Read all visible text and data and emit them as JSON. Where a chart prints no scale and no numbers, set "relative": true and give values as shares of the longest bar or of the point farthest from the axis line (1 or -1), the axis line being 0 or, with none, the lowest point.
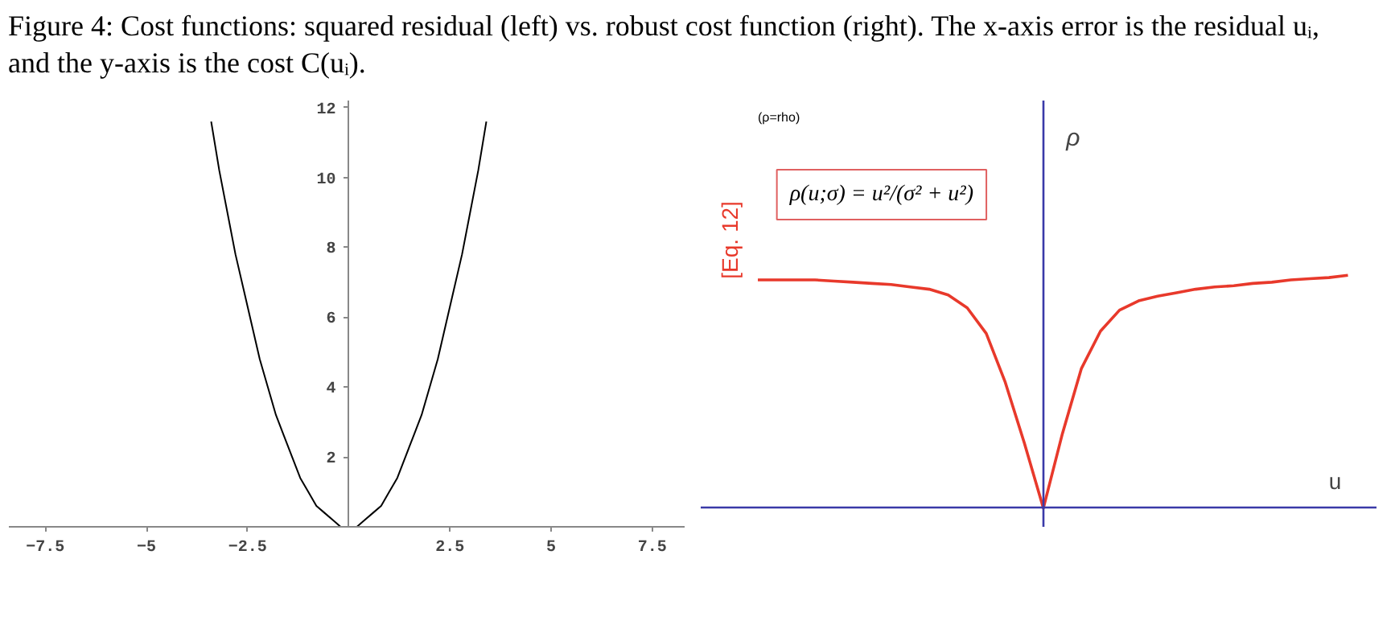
{
  "chart_data": [
    {
      "type": "line",
      "title": "Figure 4: Cost functions: squared residual (left) vs. robust cost function (right). The x-axis error is the residual uᵢ, and the y-axis is the cost C(uᵢ).",
      "x": [
        -3.4,
        -3.2,
        -3.0,
        -2.8,
        -2.6,
        -2.4,
        -2.2,
        -2.0,
        -1.8,
        -1.6,
        -1.4,
        -1.2,
        -1.0,
        -0.8,
        -0.6,
        -0.4,
        -0.2,
        0,
        0.2,
        0.4,
        0.6,
        0.8,
        1.0,
        1.2,
        1.4,
        1.6,
        1.8,
        2.0,
        2.2,
        2.4,
        2.6,
        2.8,
        3.0,
        3.2,
        3.4
      ],
      "series": [
        {
          "color": "#000000",
          "values": [
            11.6,
            10.2,
            9.0,
            7.8,
            6.8,
            5.8,
            4.8,
            4.0,
            3.2,
            2.6,
            2.0,
            1.4,
            1.0,
            0.6,
            0.4,
            0.2,
            0.0,
            0,
            0.0,
            0.2,
            0.4,
            0.6,
            1.0,
            1.4,
            2.0,
            2.6,
            3.2,
            4.0,
            4.8,
            5.8,
            6.8,
            7.8,
            9.0,
            10.2,
            11.6
          ]
        }
      ],
      "xlim": [
        -8.4,
        8.3
      ],
      "ylim": [
        0,
        12.2
      ],
      "xticks": [
        -7.5,
        -5,
        -2.5,
        2.5,
        5,
        7.5
      ],
      "yticks": [
        2,
        4,
        6,
        8,
        10,
        12
      ]
    },
    {
      "type": "line",
      "relative": true,
      "xlabel": "u",
      "ylabel": "ρ",
      "categories": [
        null,
        null,
        null,
        null,
        null,
        null,
        null,
        null,
        null,
        null,
        null,
        null,
        null,
        null,
        null,
        null,
        null,
        null,
        null,
        null,
        null,
        null,
        null,
        null,
        null,
        null,
        null,
        null,
        null,
        null,
        null,
        null
      ],
      "series": [
        {
          "color": "#e8392b",
          "values": [
            0.98,
            0.98,
            0.98,
            0.98,
            0.975,
            0.97,
            0.965,
            0.96,
            0.95,
            0.94,
            0.915,
            0.86,
            0.75,
            0.54,
            0.28,
            0,
            0.32,
            0.6,
            0.76,
            0.85,
            0.89,
            0.91,
            0.925,
            0.94,
            0.95,
            0.955,
            0.965,
            0.97,
            0.98,
            0.985,
            0.99,
            1.0
          ]
        }
      ],
      "annotations": [
        "(ρ=rho)",
        "[Eq. 12]",
        "ρ(u;σ) = u²/(σ² + u²)"
      ]
    }
  ]
}
